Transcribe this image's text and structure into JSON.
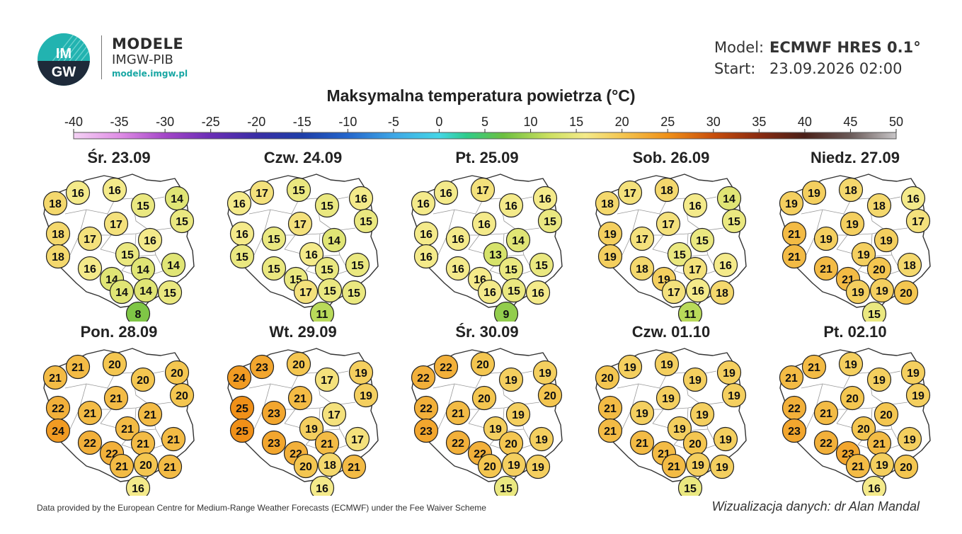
{
  "header": {
    "brand_title": "MODELE",
    "brand_subtitle": "IMGW-PIB",
    "brand_url": "modele.imgw.pl",
    "logo_text_top": "IM",
    "logo_text_bottom": "GW",
    "model_label": "Model:",
    "model_value": "ECMWF HRES 0.1°",
    "start_label": "Start:",
    "start_value": "23.09.2026 02:00"
  },
  "title": "Maksymalna temperatura powietrza (°C)",
  "legend": {
    "ticks": [
      -40,
      -35,
      -30,
      -25,
      -20,
      -15,
      -10,
      -5,
      0,
      5,
      10,
      15,
      20,
      25,
      30,
      35,
      40,
      45,
      50
    ],
    "stops": [
      {
        "v": -40,
        "c": "#f4d2f4"
      },
      {
        "v": -35,
        "c": "#e08ee6"
      },
      {
        "v": -30,
        "c": "#a446c8"
      },
      {
        "v": -25,
        "c": "#6a2eb6"
      },
      {
        "v": -20,
        "c": "#3a2ea6"
      },
      {
        "v": -15,
        "c": "#1e3ea8"
      },
      {
        "v": -10,
        "c": "#2466cc"
      },
      {
        "v": -5,
        "c": "#3ea6e6"
      },
      {
        "v": 0,
        "c": "#44d6e6"
      },
      {
        "v": 3,
        "c": "#2ecc8a"
      },
      {
        "v": 7,
        "c": "#6cc040"
      },
      {
        "v": 12,
        "c": "#cce060"
      },
      {
        "v": 16,
        "c": "#f4ea8a"
      },
      {
        "v": 20,
        "c": "#f4c650"
      },
      {
        "v": 25,
        "c": "#f09018"
      },
      {
        "v": 30,
        "c": "#c84e0c"
      },
      {
        "v": 35,
        "c": "#8a2a10"
      },
      {
        "v": 40,
        "c": "#4a2018"
      },
      {
        "v": 45,
        "c": "#6a5a58"
      },
      {
        "v": 50,
        "c": "#c8c6c8"
      }
    ]
  },
  "panels": [
    {
      "date": "Śr. 23.09",
      "temps": [
        18,
        16,
        16,
        14,
        15,
        15,
        18,
        17,
        17,
        16,
        18,
        15,
        16,
        14,
        14,
        14,
        14,
        14,
        15,
        8
      ]
    },
    {
      "date": "Czw. 24.09",
      "temps": [
        16,
        17,
        15,
        16,
        15,
        15,
        16,
        15,
        17,
        14,
        15,
        16,
        15,
        15,
        15,
        15,
        15,
        17,
        15,
        11
      ]
    },
    {
      "date": "Pt. 25.09",
      "temps": [
        16,
        16,
        17,
        16,
        16,
        15,
        16,
        16,
        16,
        14,
        16,
        13,
        16,
        16,
        15,
        15,
        15,
        16,
        16,
        9
      ]
    },
    {
      "date": "Sob. 26.09",
      "temps": [
        18,
        17,
        18,
        14,
        16,
        15,
        19,
        17,
        17,
        15,
        19,
        15,
        18,
        19,
        17,
        16,
        16,
        17,
        18,
        11
      ]
    },
    {
      "date": "Niedz. 27.09",
      "temps": [
        19,
        19,
        18,
        16,
        18,
        17,
        21,
        19,
        19,
        19,
        21,
        19,
        21,
        21,
        20,
        18,
        19,
        19,
        20,
        15
      ]
    },
    {
      "date": "Pon. 28.09",
      "temps": [
        21,
        21,
        20,
        20,
        20,
        20,
        22,
        21,
        21,
        21,
        24,
        21,
        22,
        22,
        21,
        21,
        20,
        21,
        21,
        16
      ]
    },
    {
      "date": "Wt. 29.09",
      "temps": [
        24,
        23,
        20,
        19,
        17,
        19,
        25,
        23,
        21,
        17,
        25,
        19,
        23,
        22,
        21,
        17,
        18,
        20,
        21,
        16
      ]
    },
    {
      "date": "Śr. 30.09",
      "temps": [
        22,
        22,
        20,
        19,
        19,
        20,
        22,
        21,
        20,
        19,
        23,
        19,
        22,
        22,
        20,
        19,
        19,
        20,
        19,
        15
      ]
    },
    {
      "date": "Czw. 01.10",
      "temps": [
        20,
        19,
        19,
        19,
        19,
        19,
        21,
        19,
        19,
        19,
        21,
        19,
        21,
        21,
        20,
        19,
        19,
        21,
        19,
        15
      ]
    },
    {
      "date": "Pt. 02.10",
      "temps": [
        21,
        21,
        19,
        19,
        19,
        19,
        22,
        21,
        20,
        20,
        23,
        20,
        22,
        23,
        21,
        19,
        19,
        21,
        20,
        16
      ]
    }
  ],
  "footer": {
    "left": "Data provided by the European Centre for Medium-Range Weather Forecasts (ECMWF) under the Fee Waiver Scheme",
    "right": "Wizualizacja danych: dr Alan Mandal"
  }
}
